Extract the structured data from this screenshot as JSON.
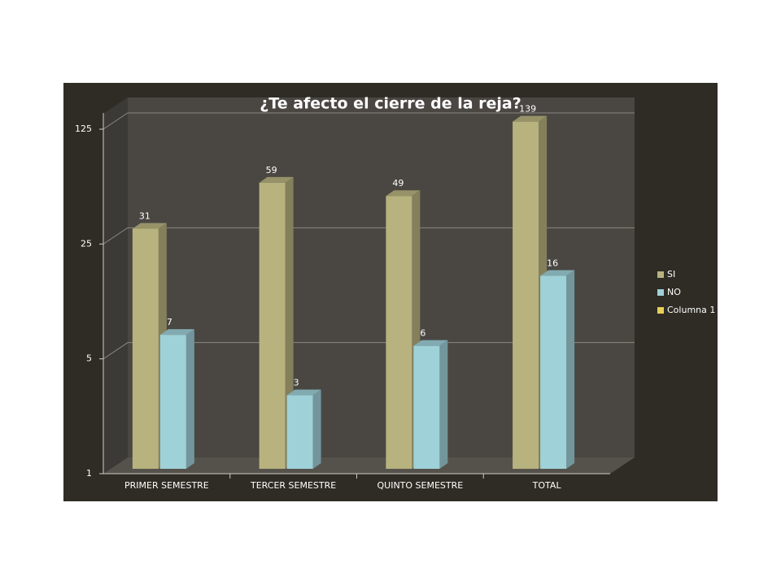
{
  "chart_data": {
    "type": "bar3d",
    "title": "¿Te afecto el cierre de la reja?",
    "categories": [
      "PRIMER SEMESTRE",
      "TERCER SEMESTRE",
      "QUINTO SEMESTRE",
      "TOTAL"
    ],
    "series": [
      {
        "name": "SI",
        "color": "#b8b27f",
        "values": [
          31,
          59,
          49,
          139
        ]
      },
      {
        "name": "NO",
        "color": "#9fd1d8",
        "values": [
          7,
          3,
          6,
          16
        ]
      },
      {
        "name": "Columna 1",
        "color": "#e8cf5a",
        "values": [
          null,
          null,
          null,
          null
        ]
      }
    ],
    "ylim": [
      1,
      125
    ],
    "yticks": [
      1,
      5,
      25,
      125
    ],
    "log": true,
    "grid": true,
    "legend": "right"
  }
}
